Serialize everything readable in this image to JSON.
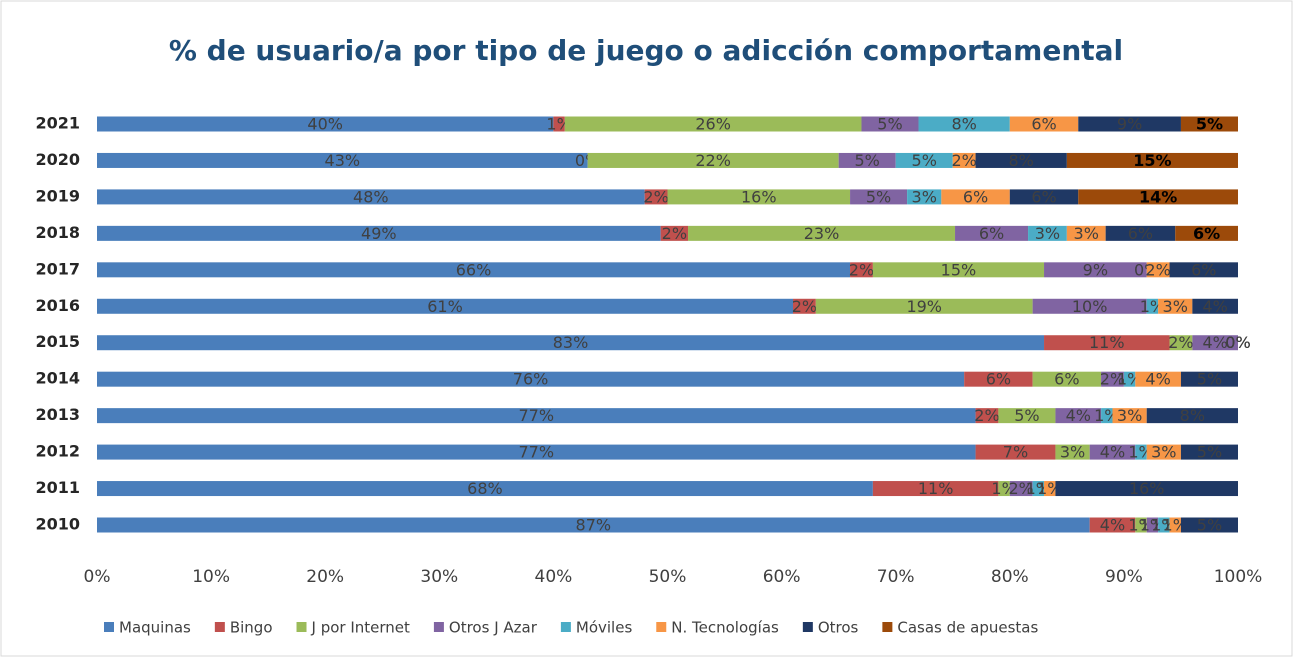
{
  "chart_data": {
    "type": "stacked-hbar",
    "title": "% de usuario/a por tipo de juego o adicción comportamental",
    "categories": [
      "2010",
      "2011",
      "2012",
      "2013",
      "2014",
      "2015",
      "2016",
      "2017",
      "2018",
      "2019",
      "2020",
      "2021"
    ],
    "series": [
      {
        "name": "Maquinas",
        "color": "#4a7ebb",
        "values": [
          87,
          68,
          77,
          77,
          76,
          83,
          61,
          66,
          49.4,
          48,
          43,
          40
        ],
        "value_labels": [
          "87%",
          "68%",
          "77%",
          "77%",
          "76%",
          "83%",
          "61%",
          "66%",
          "49%",
          "48%",
          "43%",
          "40%"
        ]
      },
      {
        "name": "Bingo",
        "color": "#c0504d",
        "values": [
          4,
          11,
          7,
          2,
          6,
          11,
          2,
          2,
          2.4,
          2,
          0,
          1
        ],
        "value_labels": [
          "4%",
          "11%",
          "7%",
          "2%",
          "6%",
          "11%",
          "2%",
          "2%",
          "2%",
          "2%",
          "0%",
          "1%"
        ]
      },
      {
        "name": "J por Internet",
        "color": "#9bbb59",
        "values": [
          1,
          1,
          3,
          5,
          6,
          2,
          19,
          15,
          23.4,
          16,
          22,
          26
        ],
        "value_labels": [
          "1%",
          "1%",
          "3%",
          "5%",
          "6%",
          "2%",
          "19%",
          "15%",
          "23%",
          "16%",
          "22%",
          "26%"
        ]
      },
      {
        "name": "Otros J Azar",
        "color": "#8064a2",
        "values": [
          1,
          2,
          4,
          4,
          2,
          4,
          10,
          9,
          6.4,
          5,
          5,
          5
        ],
        "value_labels": [
          "1%",
          "2%",
          "4%",
          "4%",
          "2%",
          "4%",
          "10%",
          "9%",
          "6%",
          "5%",
          "5%",
          "5%"
        ]
      },
      {
        "name": "Móviles",
        "color": "#4bacc6",
        "values": [
          1,
          1,
          1,
          1,
          1,
          0,
          1,
          0,
          3.4,
          3,
          5,
          8
        ],
        "value_labels": [
          "1%",
          "1%",
          "1%",
          "1%",
          "1%",
          "0%",
          "1%",
          "0%",
          "3%",
          "3%",
          "5%",
          "8%"
        ]
      },
      {
        "name": "N. Tecnologías",
        "color": "#f79646",
        "values": [
          1,
          1,
          3,
          3,
          4,
          0,
          3,
          2,
          3.4,
          6,
          2,
          6
        ],
        "value_labels": [
          "1%",
          "1%",
          "3%",
          "3%",
          "4%",
          "0%",
          "3%",
          "2%",
          "3%",
          "6%",
          "2%",
          "6%"
        ]
      },
      {
        "name": "Otros",
        "color": "#1f3864",
        "values": [
          5,
          16,
          5,
          8,
          5,
          0,
          4,
          6,
          6.1,
          6,
          8,
          9
        ],
        "value_labels": [
          "5%",
          "16%",
          "5%",
          "8%",
          "5%",
          "0%",
          "4%",
          "6%",
          "6%",
          "6%",
          "8%",
          "9%"
        ]
      },
      {
        "name": "Casas de apuestas",
        "color": "#9c4a0a",
        "values": [
          null,
          null,
          null,
          null,
          null,
          null,
          null,
          null,
          5.5,
          14,
          15,
          5
        ],
        "value_labels": [
          null,
          null,
          null,
          null,
          null,
          null,
          null,
          null,
          "6%",
          "14%",
          "15%",
          "5%"
        ]
      }
    ],
    "xlim": [
      0,
      100
    ],
    "xticks": [
      {
        "value": 0,
        "label": "0%"
      },
      {
        "value": 10,
        "label": "10%"
      },
      {
        "value": 20,
        "label": "20%"
      },
      {
        "value": 30,
        "label": "30%"
      },
      {
        "value": 40,
        "label": "40%"
      },
      {
        "value": 50,
        "label": "50%"
      },
      {
        "value": 60,
        "label": "60%"
      },
      {
        "value": 70,
        "label": "70%"
      },
      {
        "value": 80,
        "label": "80%"
      },
      {
        "value": 90,
        "label": "90%"
      },
      {
        "value": 100,
        "label": "100%"
      }
    ],
    "grid": false
  }
}
